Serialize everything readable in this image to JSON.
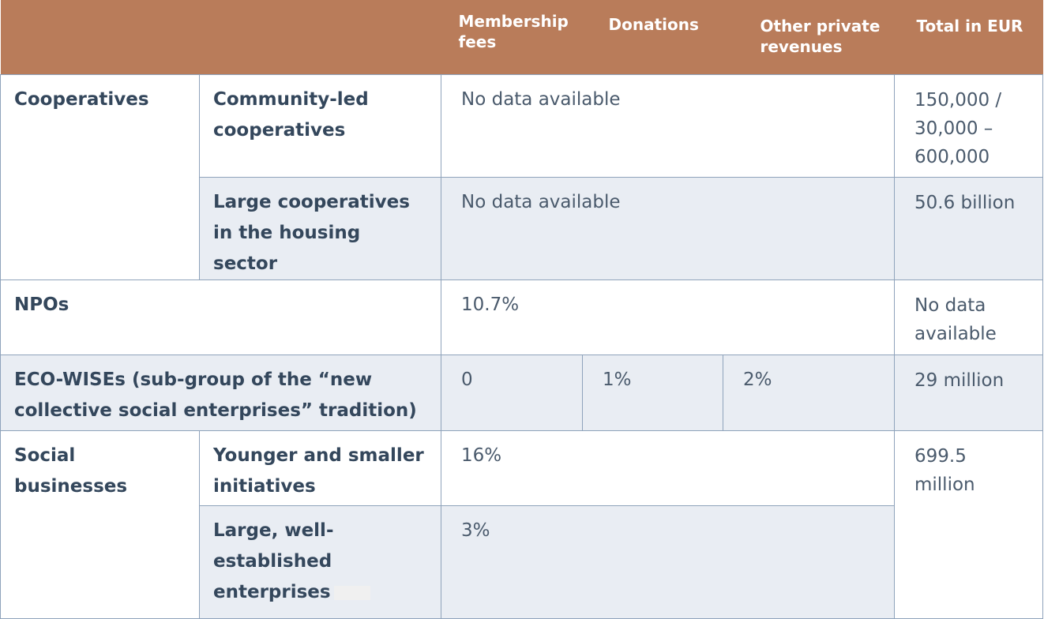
{
  "header": {
    "membership_fees": "Membership fees",
    "donations": "Donations",
    "other_private_revenues": "Other private revenues",
    "total_in_eur": "Total in EUR"
  },
  "rows": {
    "cooperatives": {
      "label": "Cooperatives",
      "community_led": {
        "label": "Community-led cooperatives",
        "value": "No data available",
        "total": "150,000 / 30,000 – 600,000"
      },
      "large_housing": {
        "label": "Large cooperatives in the housing sector",
        "value": "No data available",
        "total": "50.6 billion"
      }
    },
    "npos": {
      "label": "NPOs",
      "value": "10.7%",
      "total": "No data available"
    },
    "eco_wises": {
      "label": "ECO-WISEs (sub-group of the “new collective social enterprises” tradition)",
      "membership_fees": "0",
      "donations": "1%",
      "other_private_revenues": "2%",
      "total": "29 million"
    },
    "social_businesses": {
      "label": "Social businesses",
      "total": "699.5 million",
      "younger": {
        "label": "Younger and smaller initiatives",
        "value": "16%"
      },
      "large_established": {
        "label": "Large, well-established enterprises",
        "value": "3%"
      }
    }
  }
}
